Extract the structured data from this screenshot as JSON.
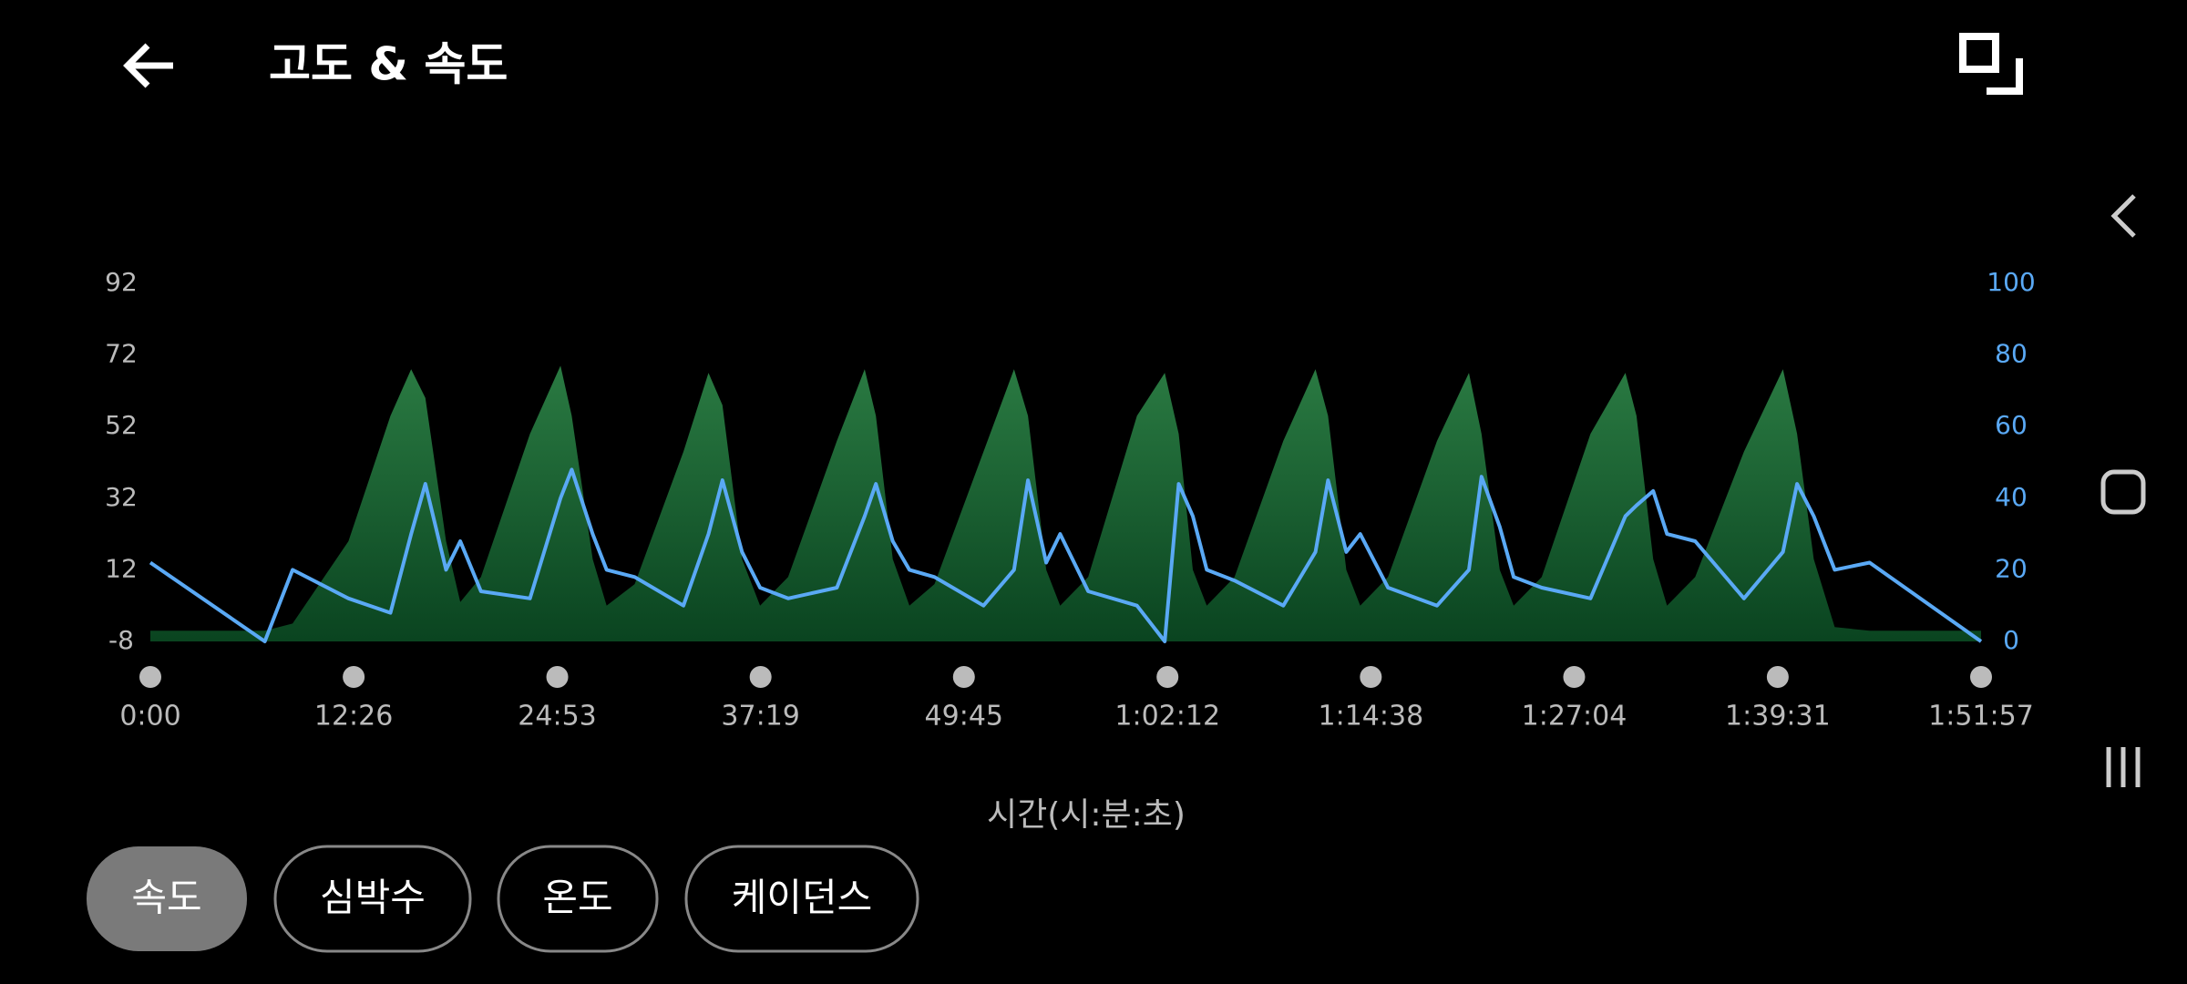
{
  "header": {
    "title": "고도 & 속도"
  },
  "chart_data": {
    "type": "line",
    "x_label": "시간(시:분:초)",
    "x": [
      0,
      420,
      522,
      727,
      881,
      957,
      1009,
      1085,
      1137,
      1213,
      1393,
      1505,
      1546,
      1623,
      1674,
      1777,
      1956,
      2048,
      2099,
      2171,
      2237,
      2340,
      2519,
      2621,
      2662,
      2724,
      2785,
      2877,
      3057,
      3169,
      3220,
      3287,
      3338,
      3441,
      3620,
      3722,
      3773,
      3825,
      3876,
      3978,
      4157,
      4275,
      4321,
      4388,
      4439,
      4541,
      4721,
      4838,
      4884,
      4951,
      5002,
      5105,
      5284,
      5412,
      5453,
      5514,
      5565,
      5668,
      5847,
      5990,
      6042,
      6103,
      6180,
      6308,
      6717
    ],
    "series": [
      {
        "kind": "area",
        "color": "#1f6b37",
        "axis": "y",
        "values": [
          -5,
          -5,
          -3,
          20,
          55,
          68,
          60,
          20,
          3,
          10,
          50,
          69,
          55,
          15,
          2,
          8,
          45,
          67,
          58,
          15,
          2,
          10,
          48,
          68,
          55,
          15,
          2,
          8,
          45,
          68,
          55,
          12,
          2,
          10,
          55,
          67,
          50,
          12,
          2,
          10,
          48,
          68,
          55,
          12,
          2,
          10,
          48,
          67,
          50,
          12,
          2,
          10,
          50,
          67,
          55,
          15,
          2,
          10,
          45,
          68,
          50,
          15,
          -4,
          -5,
          -5
        ]
      },
      {
        "kind": "line",
        "color": "#5aa9f5",
        "axis": "y2",
        "values": [
          22,
          0,
          20,
          12,
          8,
          30,
          44,
          20,
          28,
          14,
          12,
          40,
          48,
          30,
          20,
          18,
          10,
          30,
          45,
          25,
          15,
          12,
          15,
          35,
          44,
          28,
          20,
          18,
          10,
          20,
          45,
          22,
          30,
          14,
          10,
          0,
          44,
          35,
          20,
          17,
          10,
          25,
          45,
          25,
          30,
          15,
          10,
          20,
          46,
          32,
          18,
          15,
          12,
          35,
          38,
          42,
          30,
          28,
          12,
          25,
          44,
          35,
          20,
          22,
          0
        ]
      }
    ],
    "xlim": [
      0,
      6717
    ],
    "xticks": [
      {
        "value": 0,
        "label": "0:00"
      },
      {
        "value": 746,
        "label": "12:26"
      },
      {
        "value": 1493,
        "label": "24:53"
      },
      {
        "value": 2239,
        "label": "37:19"
      },
      {
        "value": 2985,
        "label": "49:45"
      },
      {
        "value": 3732,
        "label": "1:02:12"
      },
      {
        "value": 4478,
        "label": "1:14:38"
      },
      {
        "value": 5224,
        "label": "1:27:04"
      },
      {
        "value": 5971,
        "label": "1:39:31"
      },
      {
        "value": 6717,
        "label": "1:51:57"
      }
    ],
    "ylim": [
      -8,
      92
    ],
    "yticks": [
      -8,
      12,
      32,
      52,
      72,
      92
    ],
    "y2lim": [
      0,
      100
    ],
    "y2ticks": [
      0,
      20,
      40,
      60,
      80,
      100
    ]
  },
  "buttons": [
    "속도",
    "심박수",
    "온도",
    "케이던스"
  ]
}
